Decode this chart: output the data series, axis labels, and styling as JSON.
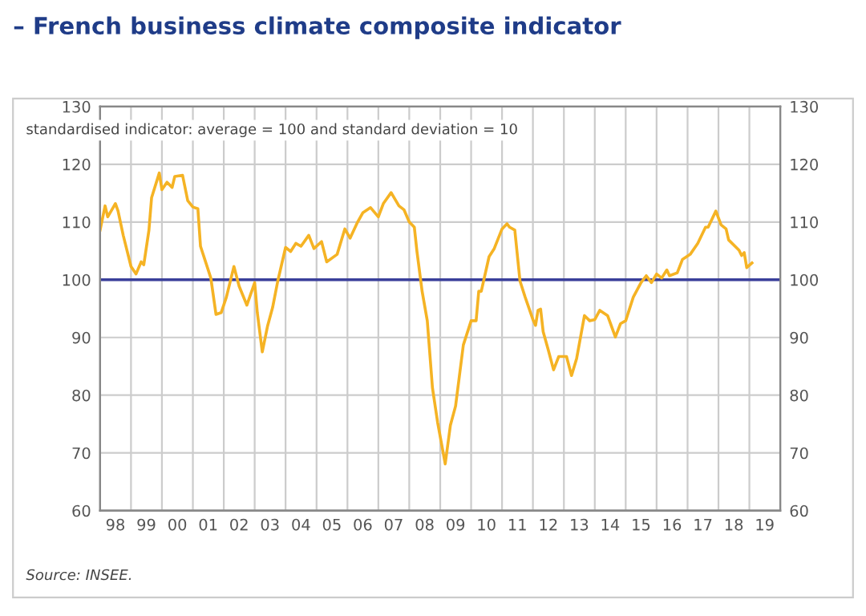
{
  "chart_data": {
    "type": "line",
    "title": "– French business climate composite indicator",
    "subtitle": "standardised indicator: average = 100 and standard deviation = 10",
    "annotations": [
      "Source: INSEE."
    ],
    "series": [
      {
        "color": "#f5b324",
        "x": [
          "1998-01",
          "1998-03",
          "1998-04",
          "1998-07",
          "1998-08",
          "1998-10",
          "1999-01",
          "1999-03",
          "1999-05",
          "1999-06",
          "1999-08",
          "1999-09",
          "1999-12",
          "2000-01",
          "2000-03",
          "2000-05",
          "2000-06",
          "2000-09",
          "2000-11",
          "2001-01",
          "2001-03",
          "2001-04",
          "2001-08",
          "2001-10",
          "2001-12",
          "2002-02",
          "2002-05",
          "2002-07",
          "2002-10",
          "2003-01",
          "2003-02",
          "2003-04",
          "2003-06",
          "2003-08",
          "2003-10",
          "2004-01",
          "2004-03",
          "2004-05",
          "2004-07",
          "2004-10",
          "2004-12",
          "2005-03",
          "2005-05",
          "2005-09",
          "2005-12",
          "2006-02",
          "2006-05",
          "2006-07",
          "2006-10",
          "2007-01",
          "2007-03",
          "2007-06",
          "2007-09",
          "2007-11",
          "2008-01",
          "2008-03",
          "2008-04",
          "2008-06",
          "2008-08",
          "2008-10",
          "2008-12",
          "2009-03",
          "2009-05",
          "2009-07",
          "2009-10",
          "2010-01",
          "2010-03",
          "2010-04",
          "2010-05",
          "2010-08",
          "2010-10",
          "2011-01",
          "2011-03",
          "2011-04",
          "2011-06",
          "2011-08",
          "2011-10",
          "2012-01",
          "2012-02",
          "2012-03",
          "2012-04",
          "2012-05",
          "2012-07",
          "2012-09",
          "2012-11",
          "2013-02",
          "2013-04",
          "2013-06",
          "2013-09",
          "2013-11",
          "2014-01",
          "2014-03",
          "2014-06",
          "2014-09",
          "2014-11",
          "2015-01",
          "2015-04",
          "2015-07",
          "2015-09",
          "2015-11",
          "2016-01",
          "2016-03",
          "2016-05",
          "2016-06",
          "2016-09",
          "2016-11",
          "2017-02",
          "2017-05",
          "2017-08",
          "2017-09",
          "2017-12",
          "2018-02",
          "2018-04",
          "2018-05",
          "2018-09",
          "2018-10",
          "2018-11",
          "2018-12",
          "2019-02"
        ],
        "values": [
          108.6,
          112.8,
          110.9,
          113.2,
          111.9,
          107.7,
          102.3,
          101.0,
          103.1,
          102.6,
          108.6,
          114.2,
          118.5,
          115.6,
          116.9,
          116.0,
          117.9,
          118.1,
          113.7,
          112.6,
          112.3,
          105.8,
          100.3,
          94.0,
          94.3,
          97.0,
          102.3,
          98.9,
          95.6,
          99.5,
          94.3,
          87.5,
          91.9,
          95.2,
          99.8,
          105.6,
          104.9,
          106.3,
          105.8,
          107.7,
          105.4,
          106.6,
          103.1,
          104.4,
          108.8,
          107.2,
          110.0,
          111.6,
          112.5,
          110.9,
          113.2,
          115.1,
          112.8,
          112.1,
          110.0,
          109.1,
          104.9,
          98.0,
          92.9,
          81.3,
          75.3,
          68.1,
          74.8,
          78.1,
          88.7,
          92.9,
          92.9,
          98.0,
          98.0,
          104.0,
          105.4,
          108.8,
          109.7,
          109.1,
          108.6,
          99.8,
          97.0,
          93.1,
          92.1,
          94.7,
          94.9,
          91.0,
          87.8,
          84.4,
          86.7,
          86.7,
          83.4,
          86.4,
          93.8,
          92.9,
          93.1,
          94.7,
          93.8,
          90.1,
          92.4,
          92.9,
          97.0,
          99.5,
          100.7,
          99.5,
          101.0,
          100.3,
          101.7,
          100.7,
          101.2,
          103.5,
          104.4,
          106.3,
          109.1,
          109.1,
          111.9,
          109.5,
          108.8,
          106.9,
          105.1,
          104.2,
          104.7,
          102.1,
          102.9
        ]
      }
    ],
    "xlim": [
      "1998",
      "2020"
    ],
    "xticks": [
      {
        "value": "1998-07",
        "label": "98"
      },
      {
        "value": "1999",
        "label": null
      },
      {
        "value": "1999-07",
        "label": "99"
      },
      {
        "value": "2000",
        "label": null
      },
      {
        "value": "2000-07",
        "label": "00"
      },
      {
        "value": "2001",
        "label": null
      },
      {
        "value": "2001-07",
        "label": "01"
      },
      {
        "value": "2002",
        "label": null
      },
      {
        "value": "2002-07",
        "label": "02"
      },
      {
        "value": "2003",
        "label": null
      },
      {
        "value": "2003-07",
        "label": "03"
      },
      {
        "value": "2004",
        "label": null
      },
      {
        "value": "2004-07",
        "label": "04"
      },
      {
        "value": "2005",
        "label": null
      },
      {
        "value": "2005-07",
        "label": "05"
      },
      {
        "value": "2006",
        "label": null
      },
      {
        "value": "2006-07",
        "label": "06"
      },
      {
        "value": "2007",
        "label": null
      },
      {
        "value": "2007-07",
        "label": "07"
      },
      {
        "value": "2008",
        "label": null
      },
      {
        "value": "2008-07",
        "label": "08"
      },
      {
        "value": "2009",
        "label": null
      },
      {
        "value": "2009-07",
        "label": "09"
      },
      {
        "value": "2010",
        "label": null
      },
      {
        "value": "2010-07",
        "label": "10"
      },
      {
        "value": "2011",
        "label": null
      },
      {
        "value": "2011-07",
        "label": "11"
      },
      {
        "value": "2012",
        "label": null
      },
      {
        "value": "2012-07",
        "label": "12"
      },
      {
        "value": "2013",
        "label": null
      },
      {
        "value": "2013-07",
        "label": "13"
      },
      {
        "value": "2014",
        "label": null
      },
      {
        "value": "2014-07",
        "label": "14"
      },
      {
        "value": "2015",
        "label": null
      },
      {
        "value": "2015-07",
        "label": "15"
      },
      {
        "value": "2016",
        "label": null
      },
      {
        "value": "2016-07",
        "label": "16"
      },
      {
        "value": "2017",
        "label": null
      },
      {
        "value": "2017-07",
        "label": "17"
      },
      {
        "value": "2018",
        "label": null
      },
      {
        "value": "2018-07",
        "label": "18"
      },
      {
        "value": "2019",
        "label": null
      },
      {
        "value": "2019-07",
        "label": "19"
      }
    ],
    "ylim": [
      60,
      130
    ],
    "yticks": [
      60,
      70,
      80,
      90,
      100,
      110,
      120,
      130
    ],
    "y2lim": [
      60,
      130
    ],
    "y2ticks": [
      60,
      70,
      80,
      90,
      100,
      110,
      120,
      130
    ],
    "ref_lines": [
      {
        "axis": "y",
        "value": 100,
        "color": "#3a3f9a"
      }
    ],
    "grid": true
  }
}
